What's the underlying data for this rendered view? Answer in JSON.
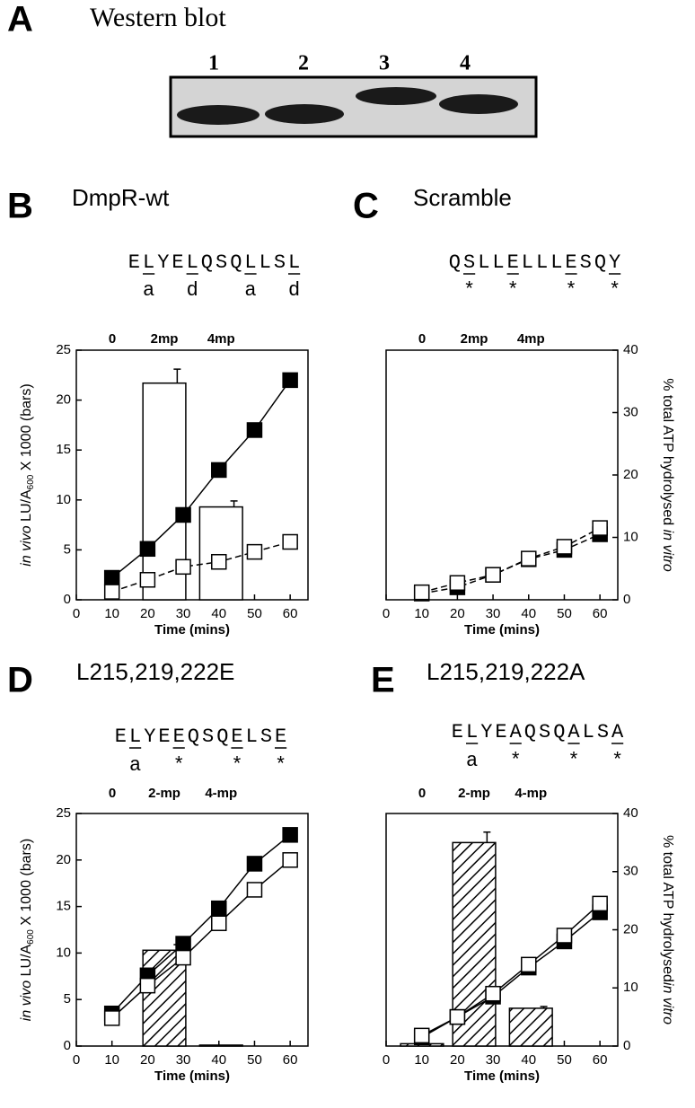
{
  "panel_a": {
    "label": "A",
    "title": "Western blot",
    "lanes": [
      "1",
      "2",
      "3",
      "4"
    ]
  },
  "chart_data": [
    {
      "type": "combo",
      "panel": "B",
      "title": "DmpR-wt",
      "sequence": "ELYELQSQLLSL",
      "heptad": " a  d   a  d",
      "x_label": "Time (mins)",
      "y_label": [
        "in vivo",
        " LU/A",
        "600",
        " X 1000 (bars)"
      ],
      "xlim": [
        0,
        65
      ],
      "xticks": [
        0,
        10,
        20,
        30,
        40,
        50,
        60
      ],
      "ylim": [
        0,
        25
      ],
      "yticks": [
        0,
        5,
        10,
        15,
        20,
        25
      ],
      "x": [
        10,
        20,
        30,
        40,
        50,
        60
      ],
      "bar_categories": [
        "0",
        "2mp",
        "4mp"
      ],
      "bars": {
        "values": [
          null,
          21.7,
          9.3
        ],
        "errors": [
          null,
          1.4,
          0.6
        ],
        "style": "open"
      },
      "series": [
        {
          "marker": "filled",
          "line_style": "solid",
          "values": [
            2.2,
            5.1,
            8.5,
            13,
            17,
            22
          ]
        },
        {
          "marker": "open",
          "line_style": "dashed",
          "values": [
            0.8,
            2.0,
            3.3,
            3.8,
            4.8,
            5.8
          ]
        }
      ]
    },
    {
      "type": "combo",
      "panel": "C",
      "title": "Scramble",
      "sequence": "QSLLELLLESQY",
      "heptad": " *  *   *  *",
      "x_label": "Time (mins)",
      "y2_label": [
        "% total ATP hydrolysed ",
        "in vitro"
      ],
      "xlim": [
        0,
        65
      ],
      "xticks": [
        0,
        10,
        20,
        30,
        40,
        50,
        60
      ],
      "y2lim": [
        0,
        40
      ],
      "y2ticks": [
        0,
        10,
        20,
        30,
        40
      ],
      "x": [
        10,
        20,
        30,
        40,
        50,
        60
      ],
      "bar_categories": [
        "0",
        "2mp",
        "4mp"
      ],
      "series": [
        {
          "marker": "filled",
          "line_style": "dashed",
          "axis": "y2",
          "values": [
            1,
            2,
            4,
            6.5,
            8,
            10.5
          ]
        },
        {
          "marker": "open",
          "line_style": "dashed",
          "axis": "y2",
          "values": [
            1.2,
            2.7,
            4,
            6.6,
            8.5,
            11.5
          ]
        }
      ]
    },
    {
      "type": "combo",
      "panel": "D",
      "title": "L215,219,222E",
      "sequence": "ELYEEQSQELSE",
      "heptad": " a  *   *  *",
      "x_label": "Time (mins)",
      "y_label": [
        "in vivo",
        " LU/A",
        "600",
        " X 1000 (bars)"
      ],
      "xlim": [
        0,
        65
      ],
      "xticks": [
        0,
        10,
        20,
        30,
        40,
        50,
        60
      ],
      "ylim": [
        0,
        25
      ],
      "yticks": [
        0,
        5,
        10,
        15,
        20,
        25
      ],
      "x": [
        10,
        20,
        30,
        40,
        50,
        60
      ],
      "bar_categories": [
        "0",
        "2-mp",
        "4-mp"
      ],
      "bars": {
        "values": [
          null,
          10.3,
          0.1
        ],
        "errors": [
          null,
          0.6,
          null
        ],
        "style": "hatched"
      },
      "series": [
        {
          "marker": "filled",
          "line_style": "solid",
          "values": [
            3.5,
            7.6,
            11,
            14.8,
            19.6,
            22.7
          ]
        },
        {
          "marker": "open",
          "line_style": "solid",
          "values": [
            3,
            6.5,
            9.5,
            13.2,
            16.8,
            20
          ]
        }
      ]
    },
    {
      "type": "combo",
      "panel": "E",
      "title": "L215,219,222A",
      "sequence": "ELYEAQSQALSA",
      "heptad": " a  *   *  *",
      "x_label": "Time (mins)",
      "y2_label": [
        "% total ATP hydrolysed",
        "in vitro"
      ],
      "xlim": [
        0,
        65
      ],
      "xticks": [
        0,
        10,
        20,
        30,
        40,
        50,
        60
      ],
      "y2lim": [
        0,
        40
      ],
      "y2ticks": [
        0,
        10,
        20,
        30,
        40
      ],
      "x": [
        10,
        20,
        30,
        40,
        50,
        60
      ],
      "bar_categories": [
        "0",
        "2-mp",
        "4-mp"
      ],
      "bars": {
        "values": [
          0.4,
          35,
          6.5
        ],
        "errors": [
          null,
          1.8,
          0.3
        ],
        "style": "hatched",
        "axis": "y2"
      },
      "series": [
        {
          "marker": "filled",
          "line_style": "solid",
          "axis": "y2",
          "values": [
            1.5,
            5,
            8.5,
            13.5,
            18,
            23
          ]
        },
        {
          "marker": "open",
          "line_style": "solid",
          "axis": "y2",
          "values": [
            1.8,
            5,
            9,
            14,
            19,
            24.5
          ]
        }
      ]
    }
  ]
}
